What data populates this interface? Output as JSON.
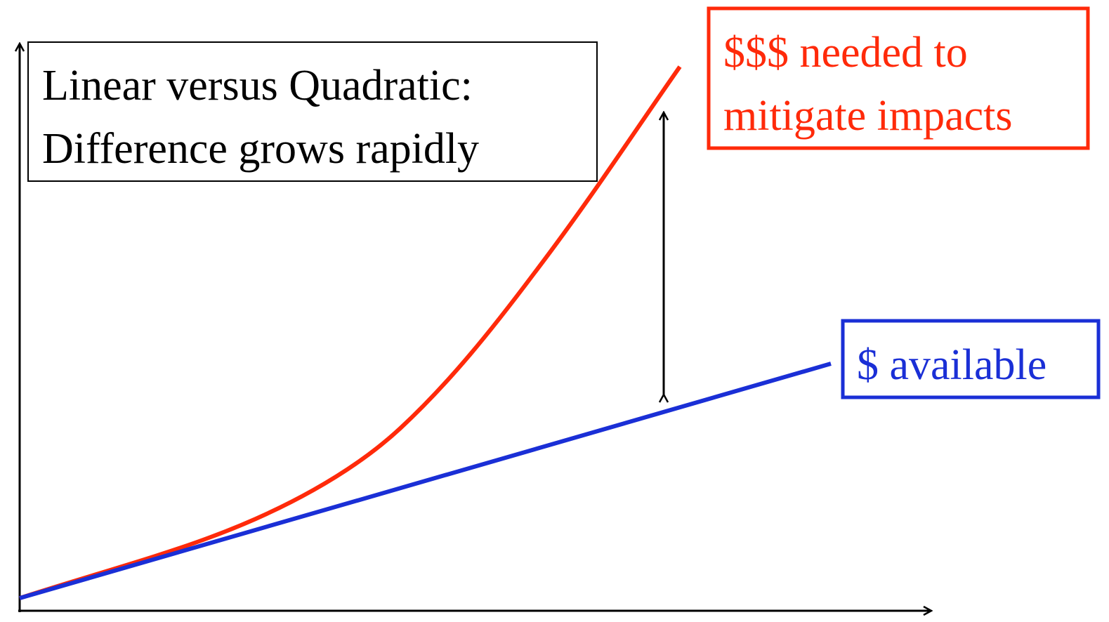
{
  "title": {
    "lines": [
      "Linear versus Quadratic:",
      "Difference grows rapidly"
    ]
  },
  "labels": {
    "needed": {
      "lines": [
        "$$$ needed to",
        "mitigate impacts"
      ]
    },
    "available": {
      "lines": [
        "$ available"
      ]
    }
  }
}
